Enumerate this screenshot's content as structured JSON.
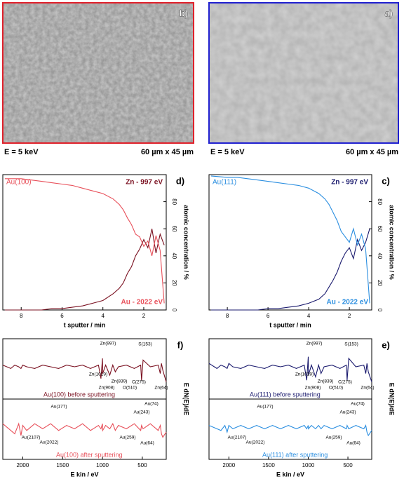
{
  "images": [
    {
      "label": "b)",
      "border": "#e0202a",
      "energy": "E = 5 keV",
      "scale": "60 µm x 45 µm"
    },
    {
      "label": "a)",
      "border": "#2020d0",
      "energy": "E = 5 keV",
      "scale": "60 µm x 45 µm"
    }
  ],
  "chart_data": [
    {
      "type": "line",
      "label": "d)",
      "sample": "Au(100)",
      "xlabel": "t sputter / min",
      "ylabel": "atomic concentration / %",
      "xlim": [
        8.9,
        0.9
      ],
      "xticks": [
        8,
        6,
        4,
        2
      ],
      "ylim": [
        0,
        100
      ],
      "yticks": [
        0,
        20,
        40,
        60,
        80
      ],
      "x": [
        8.8,
        8,
        7.5,
        7,
        6.5,
        6,
        5.5,
        5,
        4.5,
        4,
        3.5,
        3.2,
        3,
        2.8,
        2.6,
        2.4,
        2.2,
        2,
        1.8,
        1.6,
        1.4,
        1.2,
        1.0
      ],
      "series": [
        {
          "name": "Zn - 997 eV",
          "color": "#7a1020",
          "values": [
            0,
            0,
            0,
            0,
            1,
            1,
            2,
            3,
            5,
            7,
            12,
            16,
            20,
            27,
            32,
            40,
            45,
            52,
            46,
            60,
            42,
            56,
            48
          ]
        },
        {
          "name": "Au - 2022 eV",
          "color": "#e8505a",
          "values": [
            97,
            97,
            96,
            95,
            94,
            93,
            92,
            90,
            88,
            86,
            82,
            78,
            74,
            68,
            63,
            56,
            54,
            47,
            51,
            40,
            55,
            44,
            5
          ]
        }
      ]
    },
    {
      "type": "line",
      "label": "c)",
      "sample": "Au(111)",
      "xlabel": "t sputter / min",
      "ylabel": "atomic concentration / %",
      "xlim": [
        8.9,
        0.9
      ],
      "xticks": [
        8,
        6,
        4,
        2
      ],
      "ylim": [
        0,
        100
      ],
      "yticks": [
        0,
        20,
        40,
        60,
        80
      ],
      "x": [
        8.8,
        8,
        7.5,
        7,
        6.5,
        6,
        5.5,
        5,
        4.5,
        4,
        3.5,
        3.2,
        3,
        2.8,
        2.6,
        2.4,
        2.2,
        2,
        1.8,
        1.6,
        1.4,
        1.2,
        1.0
      ],
      "series": [
        {
          "name": "Zn - 997 eV",
          "color": "#1a1a6e",
          "values": [
            0,
            0,
            0,
            0,
            0,
            1,
            1,
            2,
            3,
            5,
            8,
            12,
            17,
            22,
            28,
            36,
            42,
            46,
            38,
            52,
            44,
            50,
            60
          ]
        },
        {
          "name": "Au - 2022 eV",
          "color": "#2a8ee0",
          "values": [
            99,
            98,
            98,
            97,
            96,
            95,
            94,
            93,
            92,
            90,
            86,
            82,
            78,
            72,
            66,
            58,
            54,
            50,
            60,
            48,
            56,
            45,
            5
          ]
        }
      ]
    },
    {
      "type": "spectra",
      "label": "f)",
      "xlabel": "E kin / eV",
      "ylabel": "E dN(E)/dE",
      "xlim": [
        2250,
        200
      ],
      "xticks": [
        2000,
        1500,
        1000,
        500
      ],
      "ylim": [
        -10,
        10
      ],
      "x": [
        2250,
        2150,
        2100,
        2050,
        2022,
        2000,
        1950,
        1850,
        1750,
        1650,
        1550,
        1450,
        1350,
        1250,
        1150,
        1050,
        1019,
        1000,
        997,
        960,
        908,
        870,
        839,
        800,
        700,
        600,
        520,
        510,
        490,
        400,
        300,
        275,
        260,
        243,
        200
      ],
      "series": [
        {
          "name": "Au(100) before sputtering",
          "color": "#7a1020",
          "values": [
            1,
            -1,
            1,
            0,
            -1,
            1,
            0,
            -1,
            1,
            0,
            -1,
            1,
            0,
            1,
            -1,
            1,
            -7,
            5,
            -4,
            1,
            -5,
            1,
            -3,
            0,
            1,
            -1,
            1,
            -8,
            4,
            0,
            1,
            -4,
            2,
            -2,
            -9
          ],
          "annotations": [
            "S(153)",
            "Zn(997)",
            "Zn(1019)",
            "Zn(839)",
            "Zn(908)",
            "C(275)",
            "O(510)",
            "Zn(64)"
          ]
        },
        {
          "name": "Au(100) after sputtering",
          "color": "#e8505a",
          "values": [
            2,
            -2,
            -4,
            2,
            -5,
            1,
            -2,
            2,
            -1,
            2,
            -2,
            1,
            -1,
            2,
            -2,
            1,
            -1,
            2,
            -2,
            1,
            -1,
            2,
            -2,
            1,
            -1,
            2,
            -2,
            1,
            -1,
            2,
            -2,
            1,
            -4,
            -6,
            -3
          ],
          "annotations": [
            "Au(177)",
            "Au(74)",
            "Au(243)",
            "Au(2107)",
            "Au(2022)",
            "Au(259)",
            "Au(64)"
          ]
        }
      ]
    },
    {
      "type": "spectra",
      "label": "e)",
      "xlabel": "E kin / eV",
      "ylabel": "E dN(E)/dE",
      "xlim": [
        2250,
        200
      ],
      "xticks": [
        2000,
        1500,
        1000,
        500
      ],
      "ylim": [
        -10,
        10
      ],
      "x": [
        2250,
        2150,
        2100,
        2050,
        2022,
        2000,
        1950,
        1850,
        1750,
        1650,
        1550,
        1450,
        1350,
        1250,
        1150,
        1050,
        1019,
        1000,
        997,
        960,
        908,
        870,
        839,
        800,
        700,
        600,
        520,
        510,
        490,
        400,
        300,
        275,
        260,
        243,
        200
      ],
      "series": [
        {
          "name": "Au(111) before sputtering",
          "color": "#1a1a6e",
          "values": [
            2,
            -1,
            1,
            0,
            -1,
            2,
            0,
            -1,
            1,
            0,
            -1,
            1,
            0,
            1,
            -1,
            1,
            -8,
            6,
            -5,
            1,
            -6,
            1,
            -4,
            0,
            1,
            -1,
            1,
            -8,
            5,
            0,
            1,
            -4,
            2,
            -3,
            -9
          ],
          "annotations": [
            "S(153)",
            "Zn(997)",
            "Zn(1019)",
            "Zn(839)",
            "Zn(908)",
            "C(275)",
            "O(510)",
            "Zn(64)"
          ]
        },
        {
          "name": "Au(111) after sputtering",
          "color": "#2a8ee0",
          "values": [
            1,
            -1,
            -2,
            1,
            -3,
            1,
            -1,
            1,
            -1,
            1,
            -1,
            1,
            -1,
            1,
            -1,
            1,
            -1,
            1,
            -1,
            1,
            -1,
            1,
            -1,
            1,
            -1,
            1,
            -1,
            1,
            -1,
            1,
            -1,
            1,
            -3,
            -5,
            -2
          ],
          "annotations": [
            "Au(177)",
            "Au(74)",
            "Au(243)",
            "Au(2107)",
            "Au(2022)",
            "Au(259)",
            "Au(64)"
          ]
        }
      ]
    }
  ]
}
